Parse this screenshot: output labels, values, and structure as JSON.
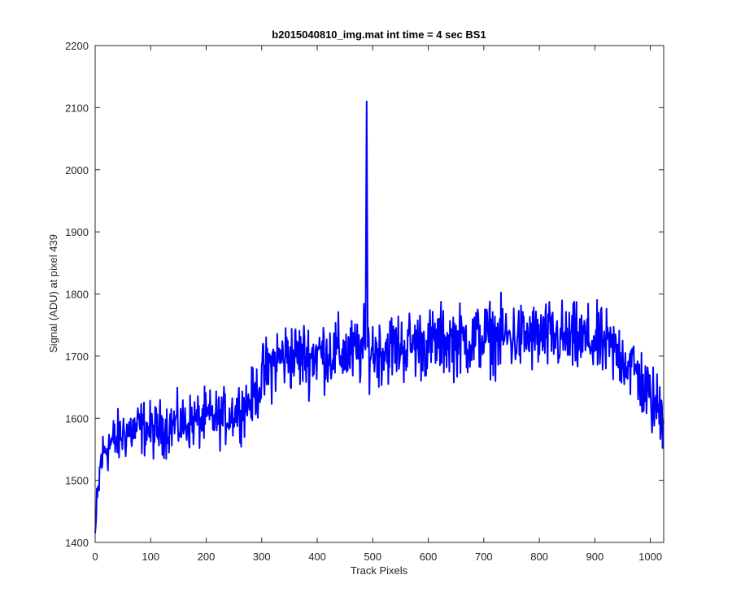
{
  "chart_data": {
    "type": "line",
    "title": "b2015040810_img.mat int time = 4 sec   BS1",
    "xlabel": "Track Pixels",
    "ylabel": "Signal (ADU) at pixel 439",
    "xlim": [
      0,
      1024
    ],
    "ylim": [
      1400,
      2200
    ],
    "xticks": [
      0,
      100,
      200,
      300,
      400,
      500,
      600,
      700,
      800,
      900,
      1000
    ],
    "yticks": [
      1400,
      1500,
      1600,
      1700,
      1800,
      1900,
      2000,
      2100,
      2200
    ],
    "grid": false,
    "legend": "none",
    "line_color": "#0000ff",
    "series": [
      {
        "x": [
          0,
          10,
          20,
          30,
          40,
          50,
          60,
          70,
          80,
          90,
          100,
          110,
          120,
          130,
          140,
          150,
          160,
          170,
          180,
          190,
          200,
          210,
          220,
          230,
          240,
          250,
          260,
          270,
          280,
          290,
          300,
          310,
          320,
          330,
          340,
          350,
          360,
          370,
          380,
          390,
          400,
          410,
          420,
          430,
          440,
          450,
          460,
          470,
          480,
          487,
          489,
          491,
          495,
          500,
          510,
          520,
          530,
          540,
          550,
          560,
          570,
          580,
          590,
          600,
          610,
          620,
          630,
          640,
          650,
          660,
          670,
          680,
          690,
          700,
          710,
          720,
          730,
          740,
          750,
          760,
          770,
          780,
          790,
          800,
          810,
          820,
          830,
          840,
          850,
          860,
          870,
          880,
          890,
          900,
          910,
          920,
          930,
          940,
          950,
          960,
          970,
          980,
          990,
          1000,
          1010,
          1020,
          1024
        ],
        "y": [
          1415,
          1530,
          1555,
          1560,
          1565,
          1575,
          1580,
          1580,
          1585,
          1585,
          1580,
          1580,
          1585,
          1585,
          1590,
          1590,
          1590,
          1595,
          1595,
          1595,
          1600,
          1600,
          1600,
          1600,
          1605,
          1610,
          1615,
          1620,
          1630,
          1640,
          1660,
          1675,
          1690,
          1695,
          1700,
          1700,
          1700,
          1700,
          1700,
          1700,
          1705,
          1705,
          1705,
          1705,
          1705,
          1705,
          1705,
          1705,
          1710,
          1720,
          2110,
          1715,
          1710,
          1710,
          1710,
          1710,
          1715,
          1715,
          1715,
          1715,
          1720,
          1720,
          1720,
          1720,
          1720,
          1725,
          1725,
          1725,
          1725,
          1725,
          1725,
          1725,
          1730,
          1730,
          1730,
          1730,
          1730,
          1730,
          1730,
          1730,
          1730,
          1730,
          1730,
          1730,
          1730,
          1730,
          1730,
          1730,
          1725,
          1725,
          1725,
          1725,
          1725,
          1720,
          1720,
          1715,
          1710,
          1705,
          1700,
          1690,
          1680,
          1665,
          1645,
          1630,
          1620,
          1610,
          1605
        ],
        "noise_amplitude": 80
      }
    ]
  }
}
